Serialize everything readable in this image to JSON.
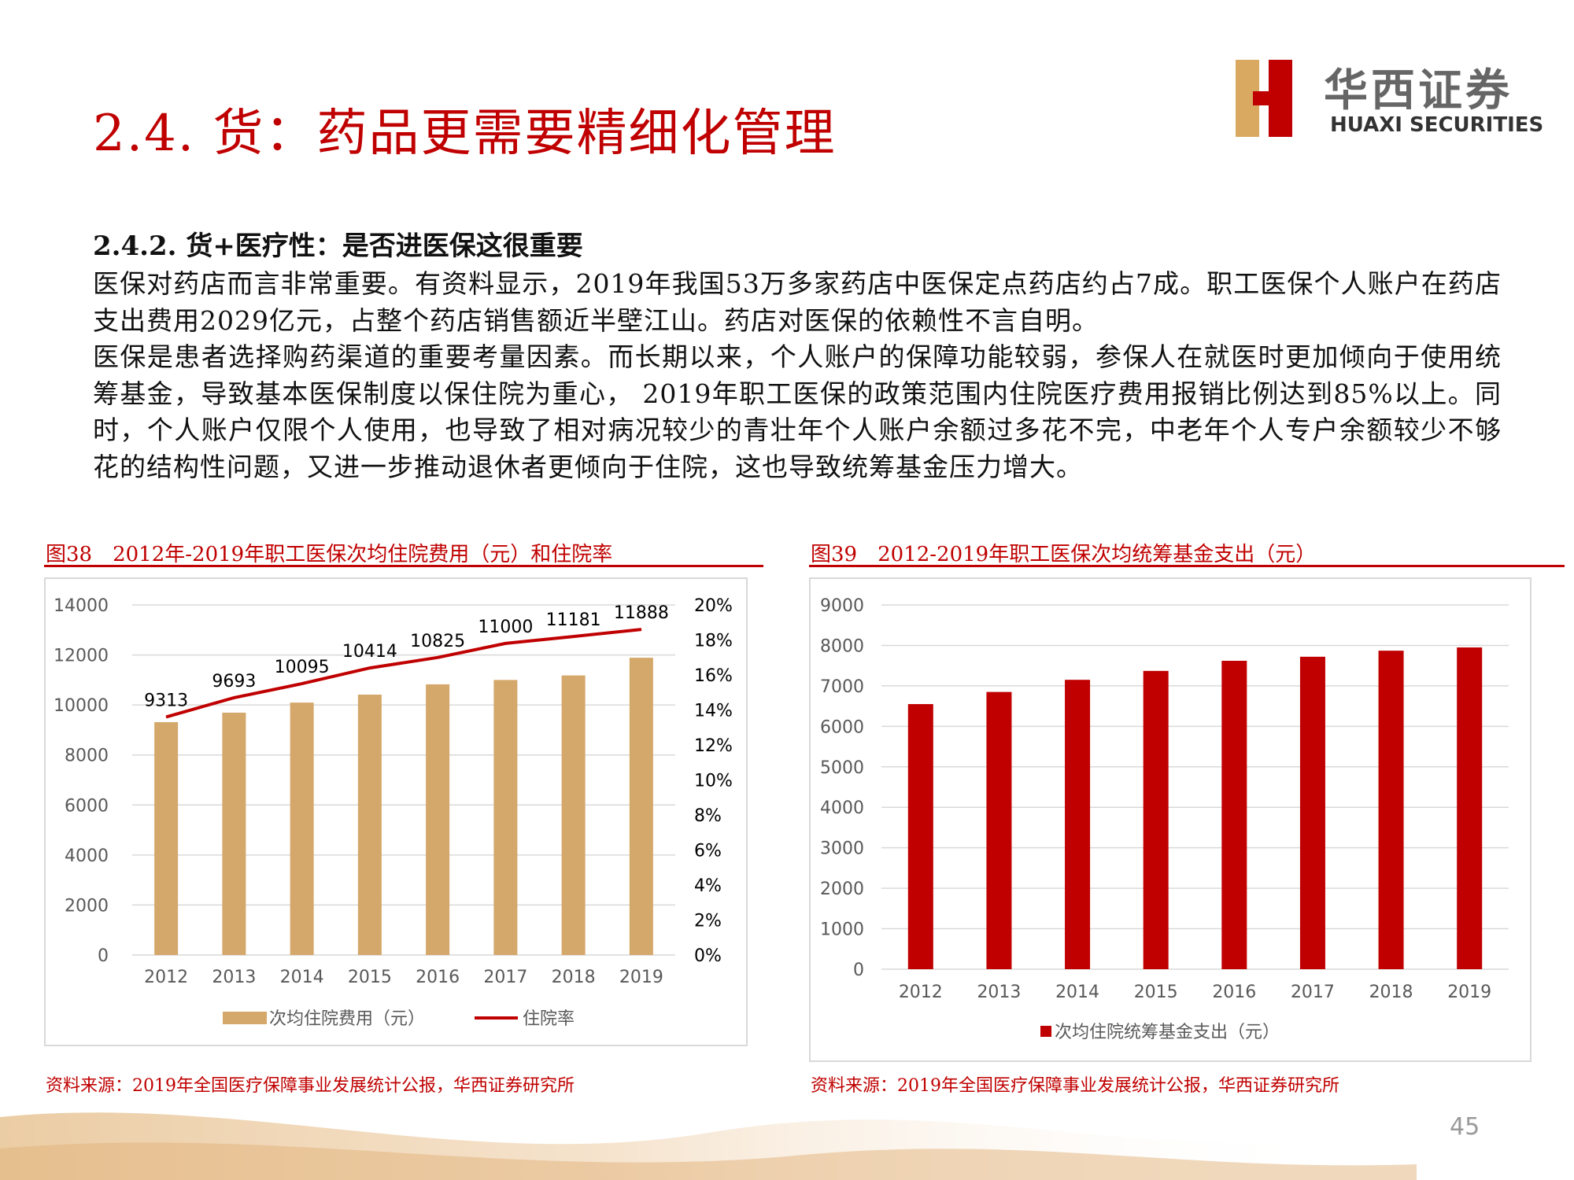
{
  "slide": {
    "title": "2.4. 货：药品更需要精细化管理",
    "subtitle": "2.4.2. 货+医疗性：是否进医保这很重要",
    "paragraph1": "医保对药店而言非常重要。有资料显示，2019年我国53万多家药店中医保定点药店约占7成。职工医保个人账户在药店支出费用2029亿元，占整个药店销售额近半壁江山。药店对医保的依赖性不言自明。",
    "paragraph2": "医保是患者选择购药渠道的重要考量因素。而长期以来，个人账户的保障功能较弱，参保人在就医时更加倾向于使用统筹基金，导致基本医保制度以保住院为重心， 2019年职工医保的政策范围内住院医疗费用报销比例达到85%以上。同时，个人账户仅限个人使用，也导致了相对病况较少的青壮年个人账户余额过多花不完，中老年个人专户余额较少不够花的结构性问题，又进一步推动退休者更倾向于住院，这也导致统筹基金压力增大。",
    "page_number": "45"
  },
  "logo": {
    "cn": "华西证券",
    "en": "HUAXI SECURITIES"
  },
  "figures": [
    {
      "title": "图38　2012年-2019年职工医保次均住院费用（元）和住院率",
      "source": "资料来源：2019年全国医疗保障事业发展统计公报，华西证券研究所"
    },
    {
      "title": "图39　2012-2019年职工医保次均统筹基金支出（元）",
      "source": "资料来源：2019年全国医疗保障事业发展统计公报，华西证券研究所"
    }
  ],
  "chart_data": [
    {
      "type": "bar",
      "title": "",
      "categories": [
        "2012",
        "2013",
        "2014",
        "2015",
        "2016",
        "2017",
        "2018",
        "2019"
      ],
      "series": [
        {
          "name": "次均住院费用（元）",
          "type": "bar",
          "axis": "left",
          "color": "#d4a76a",
          "values": [
            9313,
            9693,
            10095,
            10414,
            10825,
            11000,
            11181,
            11888
          ],
          "data_labels": [
            "9313",
            "9693",
            "10095",
            "10414",
            "10825",
            "11000",
            "11181",
            "11888"
          ]
        },
        {
          "name": "住院率",
          "type": "line",
          "axis": "right",
          "color": "#c00000",
          "values": [
            13.6,
            14.7,
            15.5,
            16.4,
            17.0,
            17.8,
            18.2,
            18.6
          ]
        }
      ],
      "yLeft": {
        "min": 0,
        "max": 14000,
        "ticks": [
          "0",
          "2000",
          "4000",
          "6000",
          "8000",
          "10000",
          "12000",
          "14000"
        ]
      },
      "yRight": {
        "min": 0,
        "max": 20,
        "ticks": [
          "0%",
          "2%",
          "4%",
          "6%",
          "8%",
          "10%",
          "12%",
          "14%",
          "16%",
          "18%",
          "20%"
        ]
      },
      "grid": true,
      "legend_position": "bottom"
    },
    {
      "type": "bar",
      "title": "",
      "categories": [
        "2012",
        "2013",
        "2014",
        "2015",
        "2016",
        "2017",
        "2018",
        "2019"
      ],
      "series": [
        {
          "name": "次均住院统筹基金支出（元）",
          "color": "#c00000",
          "values": [
            6550,
            6850,
            7150,
            7370,
            7620,
            7720,
            7870,
            7950
          ]
        }
      ],
      "yLeft": {
        "min": 0,
        "max": 9000,
        "ticks": [
          "0",
          "1000",
          "2000",
          "3000",
          "4000",
          "5000",
          "6000",
          "7000",
          "8000",
          "9000"
        ]
      },
      "grid": true,
      "legend_position": "bottom"
    }
  ]
}
